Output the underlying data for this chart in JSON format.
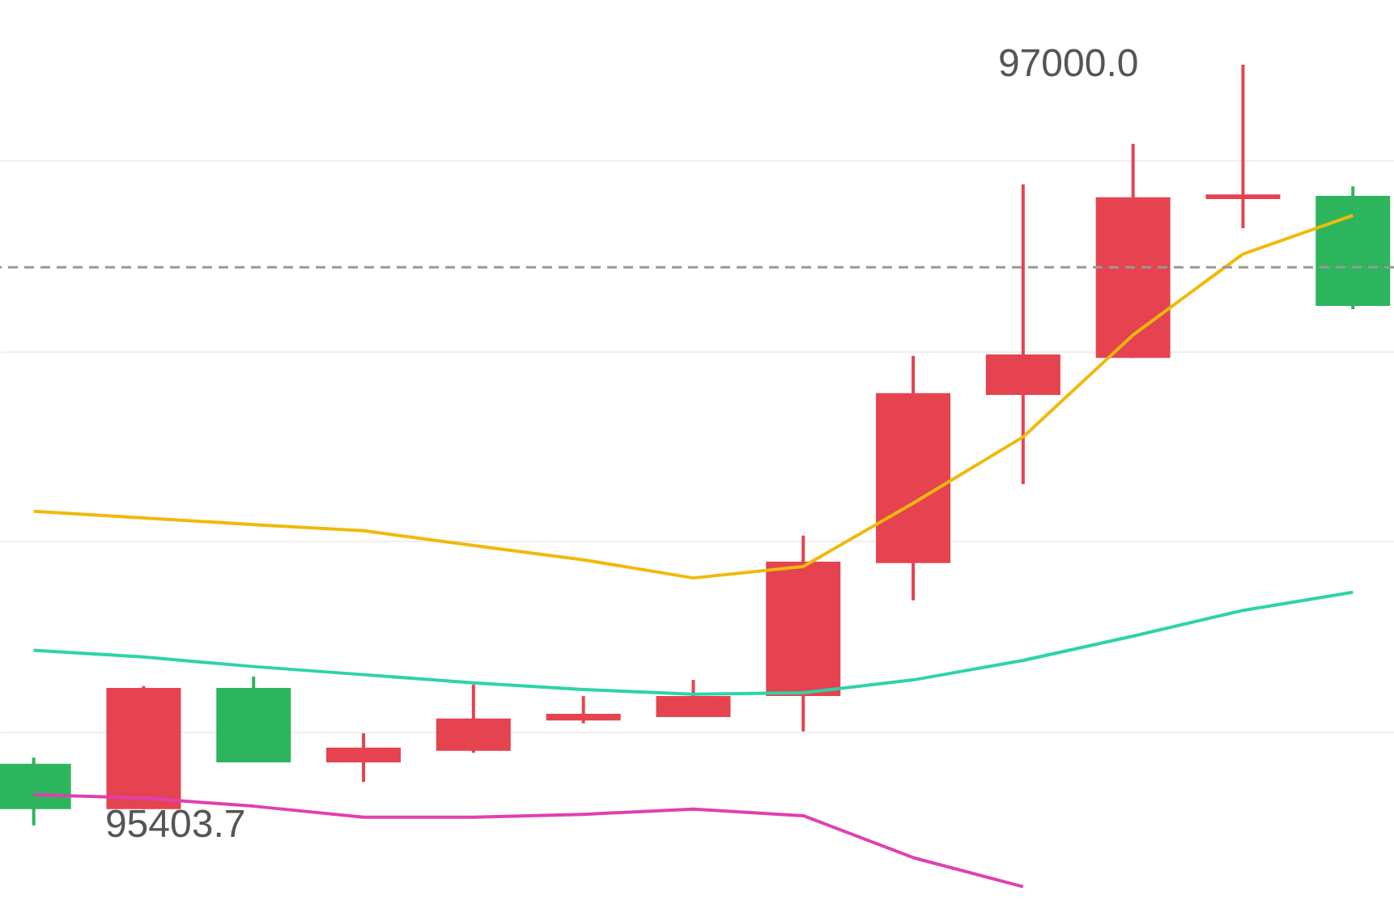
{
  "chart_data": {
    "type": "candlestick",
    "categories": [
      null,
      null,
      null,
      null,
      null,
      null,
      null,
      null,
      null,
      null,
      null,
      null,
      null
    ],
    "ohlc": [
      [
        95533,
        95546,
        95403.7,
        95438
      ],
      [
        95438,
        95696,
        95438,
        95692
      ],
      [
        95692,
        95716,
        95536,
        95536
      ],
      [
        95536,
        95597,
        95495,
        95567
      ],
      [
        95560,
        95699,
        95556,
        95628
      ],
      [
        95624,
        95675,
        95618,
        95638
      ],
      [
        95631,
        95709,
        95631,
        95675
      ],
      [
        95675,
        96012,
        95601,
        95957
      ],
      [
        95954,
        96389,
        95876,
        96311
      ],
      [
        96307,
        96749,
        96120,
        96392
      ],
      [
        96385,
        96834,
        96385,
        96722
      ],
      [
        96718,
        97000,
        96657,
        96728
      ],
      [
        96725,
        96745,
        96487,
        96494
      ]
    ],
    "colors": [
      "#2db55d",
      "#e5434f",
      "#2db55d",
      "#e5434f",
      "#e5434f",
      "#e5434f",
      "#e5434f",
      "#e5434f",
      "#e5434f",
      "#e5434f",
      "#e5434f",
      "#e5434f",
      "#2db55d"
    ],
    "series": [
      {
        "type": "line",
        "color": "#f0b90b",
        "values": [
          96063,
          96049,
          96035,
          96022,
          95991,
          95961,
          95923,
          95947,
          96080,
          96219,
          96433,
          96603,
          96684
        ]
      },
      {
        "type": "line",
        "color": "#2ed3a8",
        "values": [
          95771,
          95757,
          95737,
          95720,
          95703,
          95689,
          95679,
          95682,
          95709,
          95750,
          95801,
          95855,
          95893
        ]
      },
      {
        "type": "line",
        "color": "#e040b0",
        "values": [
          95468,
          95461,
          95444,
          95421,
          95421,
          95427,
          95438,
          95424,
          95336,
          95275,
          null,
          null,
          null
        ]
      }
    ],
    "ylim": [
      95203,
      97136
    ],
    "yticks": [
      {
        "value": 95600,
        "label": null
      },
      {
        "value": 96000,
        "label": null
      },
      {
        "value": 96400,
        "label": null
      },
      {
        "value": 96800,
        "label": null
      }
    ],
    "grid": true,
    "ref_lines": [
      {
        "axis": "y",
        "value": 96575,
        "color": "#999999",
        "line_style": "dashed"
      }
    ],
    "annotations": [
      "97000.0",
      "95403.7"
    ]
  }
}
